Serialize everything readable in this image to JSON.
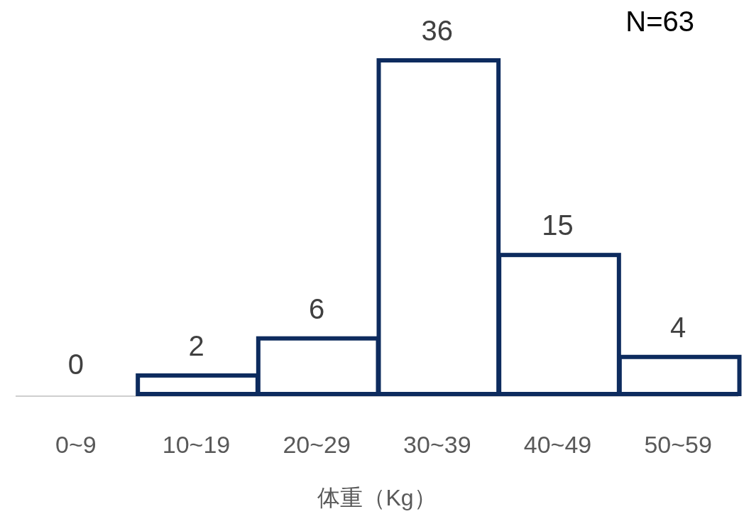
{
  "chart_data": {
    "type": "bar",
    "categories": [
      "0~9",
      "10~19",
      "20~29",
      "30~39",
      "40~49",
      "50~59"
    ],
    "values": [
      0,
      2,
      6,
      36,
      15,
      4
    ],
    "color": "#0d2b5e",
    "data_labels": true,
    "xlabel": "体重（Kg）",
    "annotations": [
      "N=63"
    ]
  }
}
